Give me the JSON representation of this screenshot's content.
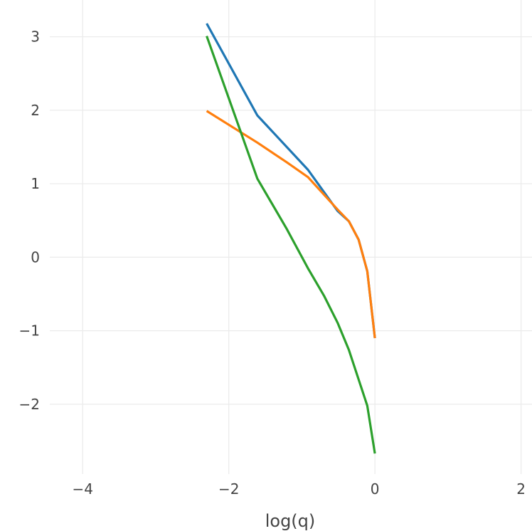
{
  "chart_data": {
    "type": "line",
    "title": "",
    "xlabel": "log(q)",
    "ylabel": "",
    "xlim": [
      -4.45,
      2.15
    ],
    "ylim": [
      -2.95,
      3.5
    ],
    "grid": true,
    "legend": "none",
    "x_ticks": [
      {
        "value": -4,
        "label": "−4"
      },
      {
        "value": -2,
        "label": "−2"
      },
      {
        "value": 0,
        "label": "0"
      },
      {
        "value": 2,
        "label": "2"
      }
    ],
    "y_ticks": [
      {
        "value": -2,
        "label": "−2"
      },
      {
        "value": -1,
        "label": "−1"
      },
      {
        "value": 0,
        "label": "0"
      },
      {
        "value": 1,
        "label": "1"
      },
      {
        "value": 2,
        "label": "2"
      },
      {
        "value": 3,
        "label": "3"
      }
    ],
    "series": [
      {
        "color": "#1f77b4",
        "x": [
          -2.303,
          -1.609,
          -0.916,
          -0.511,
          -0.357,
          -0.223,
          -0.105,
          0.0
        ],
        "y": [
          3.18,
          1.93,
          1.19,
          0.63,
          0.49,
          0.24,
          -0.19,
          -1.1
        ]
      },
      {
        "color": "#ff7f0e",
        "x": [
          -2.303,
          -1.609,
          -1.204,
          -0.916,
          -0.511,
          -0.357,
          -0.223,
          -0.105,
          0.0
        ],
        "y": [
          1.99,
          1.56,
          1.29,
          1.09,
          0.65,
          0.49,
          0.24,
          -0.19,
          -1.1
        ]
      },
      {
        "color": "#2ca02c",
        "x": [
          -2.303,
          -1.609,
          -1.204,
          -0.916,
          -0.693,
          -0.511,
          -0.357,
          -0.105,
          0.0
        ],
        "y": [
          3.01,
          1.07,
          0.38,
          -0.15,
          -0.53,
          -0.89,
          -1.26,
          -2.02,
          -2.67
        ]
      }
    ]
  }
}
